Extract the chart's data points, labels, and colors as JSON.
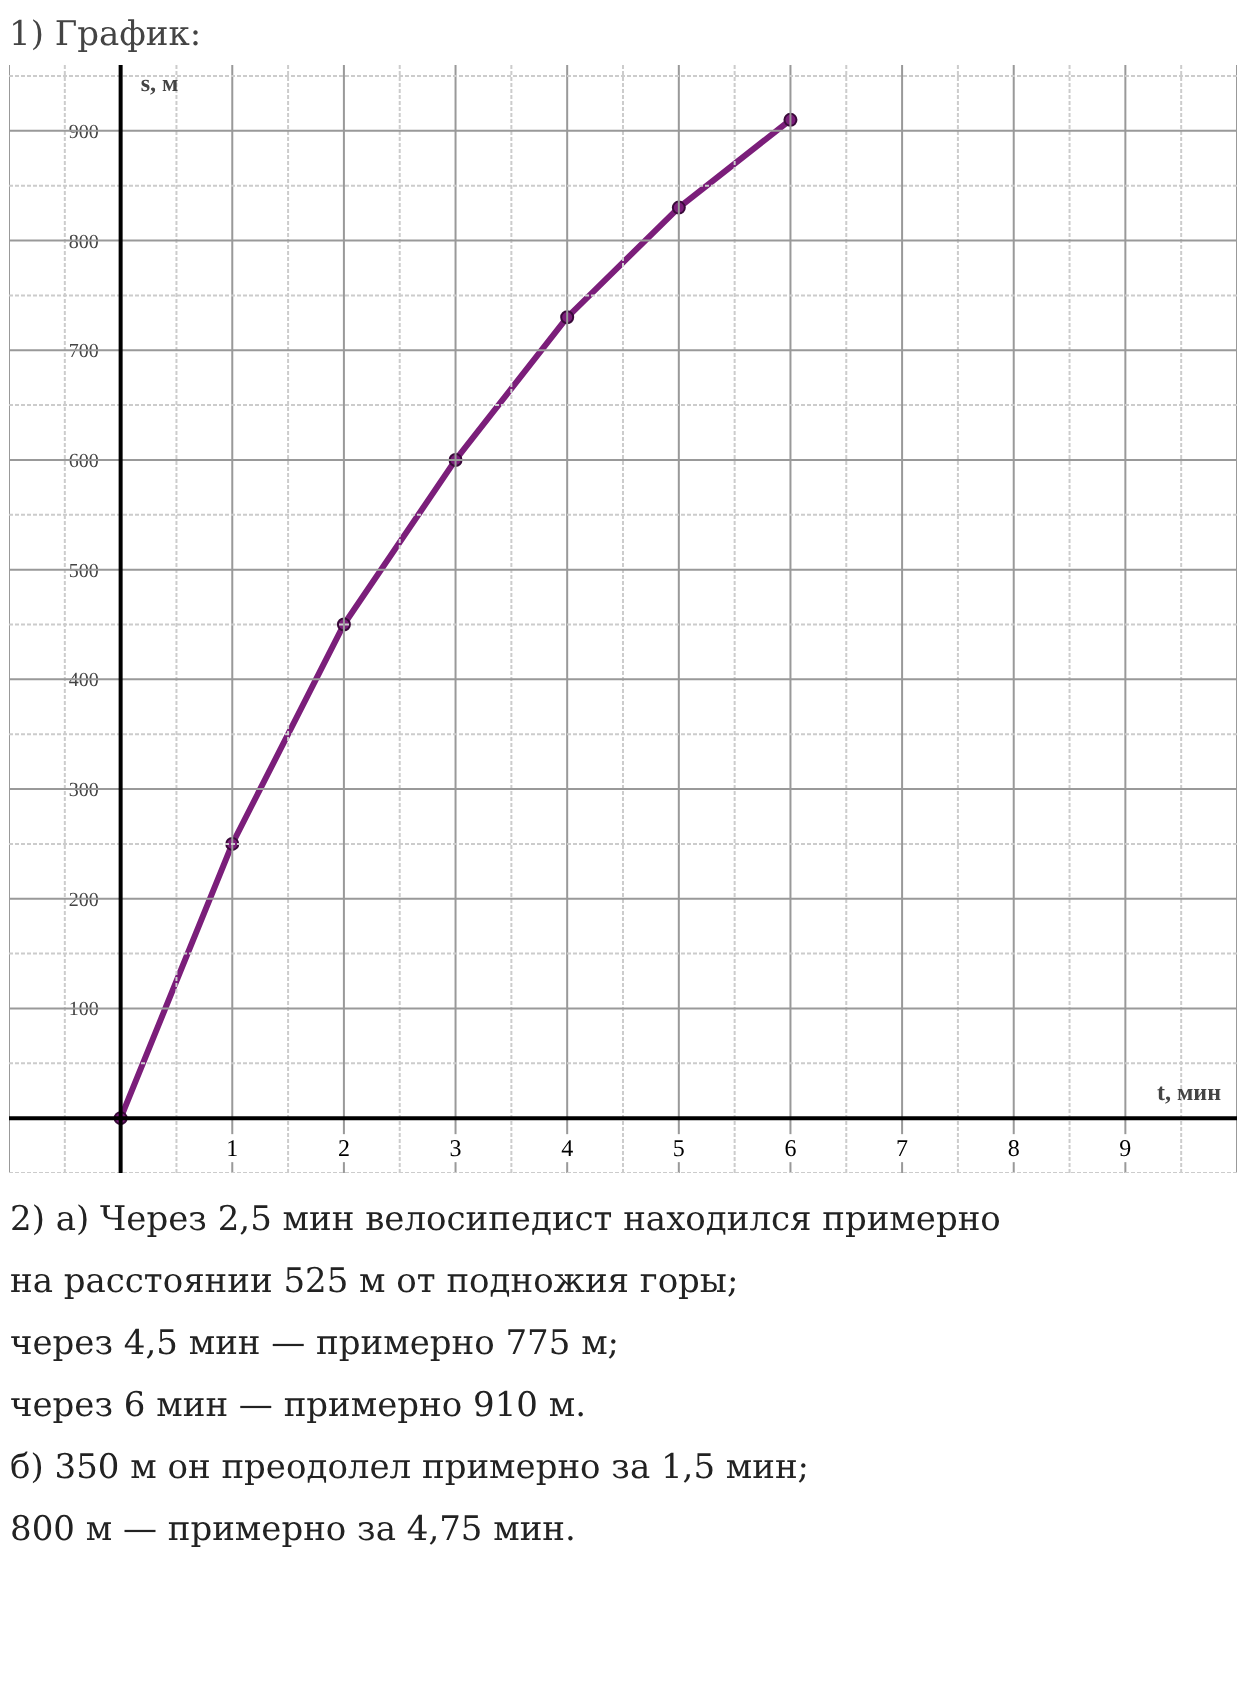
{
  "chart_data": {
    "type": "line",
    "title": "1) График:",
    "xlabel": "t, мин",
    "ylabel": "s, м",
    "x": [
      0,
      1,
      2,
      3,
      4,
      5,
      6
    ],
    "series": [
      {
        "color": "#7b1e7a",
        "values": [
          0,
          250,
          450,
          600,
          730,
          830,
          910
        ]
      }
    ],
    "xlim": [
      -1,
      10
    ],
    "ylim": [
      -50,
      960
    ],
    "xticks": [
      1,
      2,
      3,
      4,
      5,
      6,
      7,
      8,
      9
    ],
    "yticks": [
      100,
      200,
      300,
      400,
      500,
      600,
      700,
      800,
      900
    ],
    "grid": true,
    "marker": "circle",
    "line_style": "solid",
    "annotations": [
      "2) а) Через 2,5 мин велосипедист находился примерно",
      "на расстоянии 525 м от подножия горы;",
      "через 4,5 мин — примерно 775 м;",
      "через 6 мин — примерно 910 м.",
      "б) 350 м он преодолел примерно за 1,5 мин;",
      "800 м — примерно за 4,75 мин."
    ]
  }
}
